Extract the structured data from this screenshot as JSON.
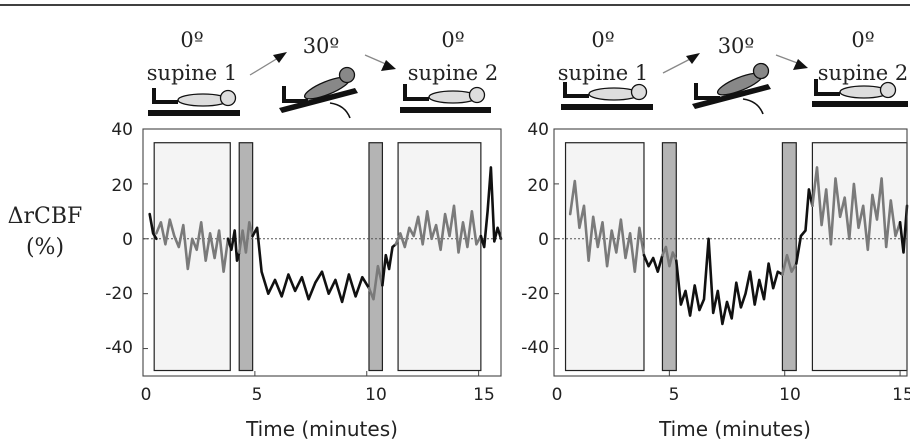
{
  "chart_data": [
    {
      "type": "line",
      "panel": "left",
      "xlabel": "Time (minutes)",
      "ylabel_line1": "ΔrCBF",
      "ylabel_line2": "(%)",
      "xlim": [
        0,
        16
      ],
      "ylim": [
        -50,
        40
      ],
      "xticks": [
        "0",
        "5",
        "10",
        "15"
      ],
      "yticks": [
        "40",
        "20",
        "0",
        "-20",
        "-40"
      ],
      "x_tick_values": [
        0,
        5,
        10,
        15
      ],
      "y_tick_values": [
        40,
        20,
        0,
        -20,
        -40
      ],
      "zero_line": "dashed",
      "phase_labels": [
        {
          "angle": "0º",
          "name": "supine 1"
        },
        {
          "angle": "30º",
          "name": ""
        },
        {
          "angle": "0º",
          "name": "supine 2"
        }
      ],
      "windows": [
        {
          "kind": "light",
          "x": [
            0.5,
            3.9
          ]
        },
        {
          "kind": "dark",
          "x": [
            4.3,
            4.9
          ]
        },
        {
          "kind": "dark",
          "x": [
            10.1,
            10.7
          ]
        },
        {
          "kind": "light",
          "x": [
            11.4,
            15.1
          ]
        }
      ],
      "series": [
        {
          "style": "black",
          "x": [
            0.3,
            0.45,
            0.6
          ],
          "y": [
            9,
            2,
            0
          ]
        },
        {
          "style": "gray",
          "x": [
            0.6,
            0.8,
            1.0,
            1.2,
            1.4,
            1.6,
            1.8,
            2.0,
            2.2,
            2.4,
            2.6,
            2.8,
            3.0,
            3.2,
            3.4,
            3.6,
            3.8
          ],
          "y": [
            2,
            6,
            -2,
            7,
            1,
            -3,
            5,
            -11,
            0,
            -4,
            6,
            -8,
            2,
            -7,
            3,
            -12,
            0
          ]
        },
        {
          "style": "black",
          "x": [
            3.8,
            3.95,
            4.1,
            4.2,
            4.3
          ],
          "y": [
            0,
            -4,
            3,
            -8,
            -5
          ]
        },
        {
          "style": "gray",
          "x": [
            4.3,
            4.45,
            4.6,
            4.75,
            4.9
          ],
          "y": [
            -5,
            3,
            -5,
            6,
            1
          ]
        },
        {
          "style": "black",
          "x": [
            4.9,
            5.1,
            5.3,
            5.6,
            5.9,
            6.2,
            6.5,
            6.8,
            7.1,
            7.4,
            7.7,
            8.0,
            8.3,
            8.6,
            8.9,
            9.2,
            9.5,
            9.8,
            10.1
          ],
          "y": [
            1,
            4,
            -12,
            -20,
            -15,
            -21,
            -13,
            -19,
            -14,
            -22,
            -16,
            -12,
            -20,
            -15,
            -23,
            -13,
            -21,
            -14,
            -18
          ]
        },
        {
          "style": "gray",
          "x": [
            10.1,
            10.3,
            10.5,
            10.7
          ],
          "y": [
            -18,
            -22,
            -10,
            -17
          ]
        },
        {
          "style": "black",
          "x": [
            10.7,
            10.85,
            11.0,
            11.15,
            11.3
          ],
          "y": [
            -17,
            -6,
            -11,
            -3,
            -2
          ]
        },
        {
          "style": "gray",
          "x": [
            11.3,
            11.5,
            11.7,
            11.9,
            12.1,
            12.3,
            12.5,
            12.7,
            12.9,
            13.1,
            13.3,
            13.5,
            13.7,
            13.9,
            14.1,
            14.3,
            14.5,
            14.7,
            14.9,
            15.1
          ],
          "y": [
            -2,
            2,
            -3,
            4,
            1,
            8,
            -2,
            10,
            0,
            5,
            -4,
            9,
            1,
            12,
            -5,
            6,
            -3,
            10,
            -2,
            1
          ]
        },
        {
          "style": "black",
          "x": [
            15.1,
            15.25,
            15.4,
            15.55,
            15.7,
            15.85,
            16.0
          ],
          "y": [
            1,
            -3,
            10,
            26,
            -1,
            4,
            0
          ]
        }
      ]
    },
    {
      "type": "line",
      "panel": "right",
      "xlabel": "Time (minutes)",
      "xlim": [
        0,
        15.3
      ],
      "ylim": [
        -50,
        40
      ],
      "xticks": [
        "0",
        "5",
        "10",
        "15"
      ],
      "yticks": [
        "40",
        "20",
        "0",
        "-20",
        "-40"
      ],
      "x_tick_values": [
        0,
        5,
        10,
        15
      ],
      "y_tick_values": [
        40,
        20,
        0,
        -20,
        -40
      ],
      "zero_line": "dashed",
      "phase_labels": [
        {
          "angle": "0º",
          "name": "supine 1"
        },
        {
          "angle": "30º",
          "name": ""
        },
        {
          "angle": "0º",
          "name": "supine 2"
        }
      ],
      "windows": [
        {
          "kind": "light",
          "x": [
            0.5,
            3.9
          ]
        },
        {
          "kind": "dark",
          "x": [
            4.7,
            5.3
          ]
        },
        {
          "kind": "dark",
          "x": [
            9.9,
            10.5
          ]
        },
        {
          "kind": "light",
          "x": [
            11.2,
            15.3
          ]
        }
      ],
      "series": [
        {
          "style": "gray",
          "x": [
            0.7,
            0.9,
            1.1,
            1.3,
            1.5,
            1.7,
            1.9,
            2.1,
            2.3,
            2.5,
            2.7,
            2.9,
            3.1,
            3.3,
            3.5,
            3.7,
            3.9
          ],
          "y": [
            9,
            21,
            4,
            12,
            -8,
            8,
            -3,
            6,
            -10,
            3,
            -5,
            7,
            -7,
            2,
            -12,
            4,
            -6
          ]
        },
        {
          "style": "black",
          "x": [
            3.9,
            4.1,
            4.3,
            4.5,
            4.7
          ],
          "y": [
            -6,
            -10,
            -7,
            -12,
            -6
          ]
        },
        {
          "style": "gray",
          "x": [
            4.7,
            4.85,
            5.0,
            5.15,
            5.3
          ],
          "y": [
            -6,
            -3,
            -10,
            -5,
            -8
          ]
        },
        {
          "style": "black",
          "x": [
            5.3,
            5.5,
            5.7,
            5.9,
            6.1,
            6.3,
            6.5,
            6.7,
            6.9,
            7.1,
            7.3,
            7.5,
            7.7,
            7.9,
            8.1,
            8.3,
            8.5,
            8.7,
            8.9,
            9.1,
            9.3,
            9.5,
            9.7,
            9.9
          ],
          "y": [
            -8,
            -24,
            -19,
            -28,
            -17,
            -26,
            -22,
            0,
            -27,
            -19,
            -31,
            -23,
            -29,
            -16,
            -25,
            -20,
            -12,
            -24,
            -15,
            -22,
            -9,
            -18,
            -12,
            -13
          ]
        },
        {
          "style": "gray",
          "x": [
            9.9,
            10.1,
            10.3,
            10.5
          ],
          "y": [
            -13,
            -6,
            -12,
            -9
          ]
        },
        {
          "style": "black",
          "x": [
            10.5,
            10.7,
            10.9,
            11.05,
            11.2
          ],
          "y": [
            -9,
            1,
            3,
            18,
            12
          ]
        },
        {
          "style": "gray",
          "x": [
            11.2,
            11.4,
            11.6,
            11.8,
            12.0,
            12.2,
            12.4,
            12.6,
            12.8,
            13.0,
            13.2,
            13.4,
            13.6,
            13.8,
            14.0,
            14.2,
            14.4,
            14.6,
            14.8,
            15.0
          ],
          "y": [
            12,
            26,
            5,
            18,
            -2,
            22,
            8,
            15,
            0,
            20,
            4,
            12,
            -4,
            16,
            7,
            22,
            -3,
            14,
            1,
            6
          ]
        },
        {
          "style": "black",
          "x": [
            15.0,
            15.15,
            15.3
          ],
          "y": [
            6,
            -5,
            12
          ]
        }
      ]
    }
  ]
}
